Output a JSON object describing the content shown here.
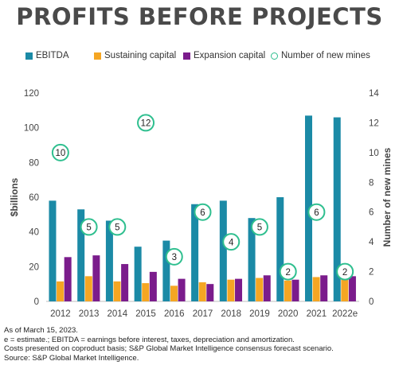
{
  "title": "PROFITS BEFORE PROJECTS",
  "legend": {
    "ebitda": "EBITDA",
    "sustaining": "Sustaining capital",
    "expansion": "Expansion capital",
    "mines": "Number of new mines"
  },
  "colors": {
    "ebitda": "#1b8aa6",
    "sustaining": "#f5a623",
    "expansion": "#7b1c8c",
    "mines": "#2fbf8f"
  },
  "chart_data": {
    "type": "bar",
    "categories": [
      "2012",
      "2013",
      "2014",
      "2015",
      "2016",
      "2017",
      "2018",
      "2019",
      "2020",
      "2021",
      "2022e"
    ],
    "series": [
      {
        "name": "EBITDA",
        "values": [
          58,
          53,
          46.5,
          31.5,
          35,
          56,
          58,
          48,
          60,
          107,
          106
        ]
      },
      {
        "name": "Sustaining capital",
        "values": [
          11.5,
          14.5,
          11.5,
          10.5,
          9,
          11,
          12.5,
          13.5,
          12,
          14,
          14
        ]
      },
      {
        "name": "Expansion capital",
        "values": [
          25.5,
          26.5,
          21.5,
          17,
          13,
          10,
          13,
          15,
          12.5,
          15,
          14.5
        ]
      }
    ],
    "secondary_series": {
      "name": "Number of new mines",
      "type": "scatter",
      "values": [
        10,
        5,
        5,
        12,
        3,
        6,
        4,
        5,
        2,
        6,
        2
      ]
    },
    "ylabel": "$billions",
    "ylim": [
      0,
      120
    ],
    "yticks": [
      0,
      20,
      40,
      60,
      80,
      100,
      120
    ],
    "y2label": "Number of new mines",
    "y2lim": [
      0,
      14
    ],
    "y2ticks": [
      0,
      2,
      4,
      6,
      8,
      10,
      12,
      14
    ],
    "legend_position": "top",
    "grid": false
  },
  "footnotes": [
    "As of March 15, 2023.",
    "e = estimate.; EBITDA = earnings before interest, taxes, depreciation and amortization.",
    "Costs presented on coproduct basis; S&P Global Market Intelligence consensus forecast scenario.",
    "Source: S&P Global Market Intelligence."
  ]
}
